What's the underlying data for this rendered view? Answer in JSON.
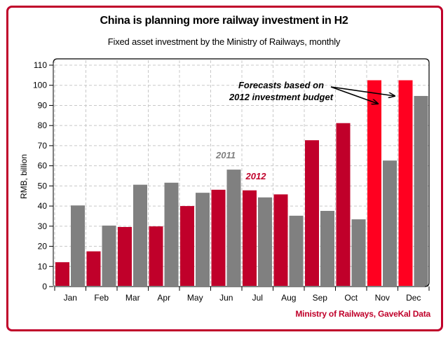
{
  "chart_data": {
    "type": "bar",
    "title": "China is planning more railway investment in H2",
    "subtitle": "Fixed asset investment by the Ministry of Railways, monthly",
    "xlabel": "",
    "ylabel": "RMB, billion",
    "ylim": [
      0,
      110
    ],
    "yticks": [
      0,
      10,
      20,
      30,
      40,
      50,
      60,
      70,
      80,
      90,
      100,
      110
    ],
    "grid": true,
    "categories": [
      "Jan",
      "Feb",
      "Mar",
      "Apr",
      "May",
      "Jun",
      "Jul",
      "Aug",
      "Sep",
      "Oct",
      "Nov",
      "Dec"
    ],
    "series": [
      {
        "name": "2012",
        "color": "#c0002a",
        "forecast_color": "#ff0020",
        "values": [
          12.1,
          17.5,
          29.6,
          29.9,
          40.0,
          48.1,
          47.8,
          45.8,
          72.7,
          81.2,
          102.5,
          102.5
        ],
        "forecast": [
          false,
          false,
          false,
          false,
          false,
          false,
          false,
          false,
          false,
          false,
          true,
          true
        ]
      },
      {
        "name": "2011",
        "color": "#808080",
        "values": [
          40.3,
          30.3,
          50.6,
          51.6,
          46.6,
          58.1,
          44.3,
          35.2,
          37.6,
          33.4,
          62.6,
          94.7
        ]
      }
    ],
    "series_labels": [
      {
        "text": "2011",
        "color": "#808080"
      },
      {
        "text": "2012",
        "color": "#c0002a"
      }
    ],
    "annotation": {
      "lines": [
        "Forecasts based on",
        "2012 investment budget"
      ],
      "points_to": [
        "Nov",
        "Dec"
      ]
    },
    "source": "Ministry of Railways, GaveKal Data"
  }
}
